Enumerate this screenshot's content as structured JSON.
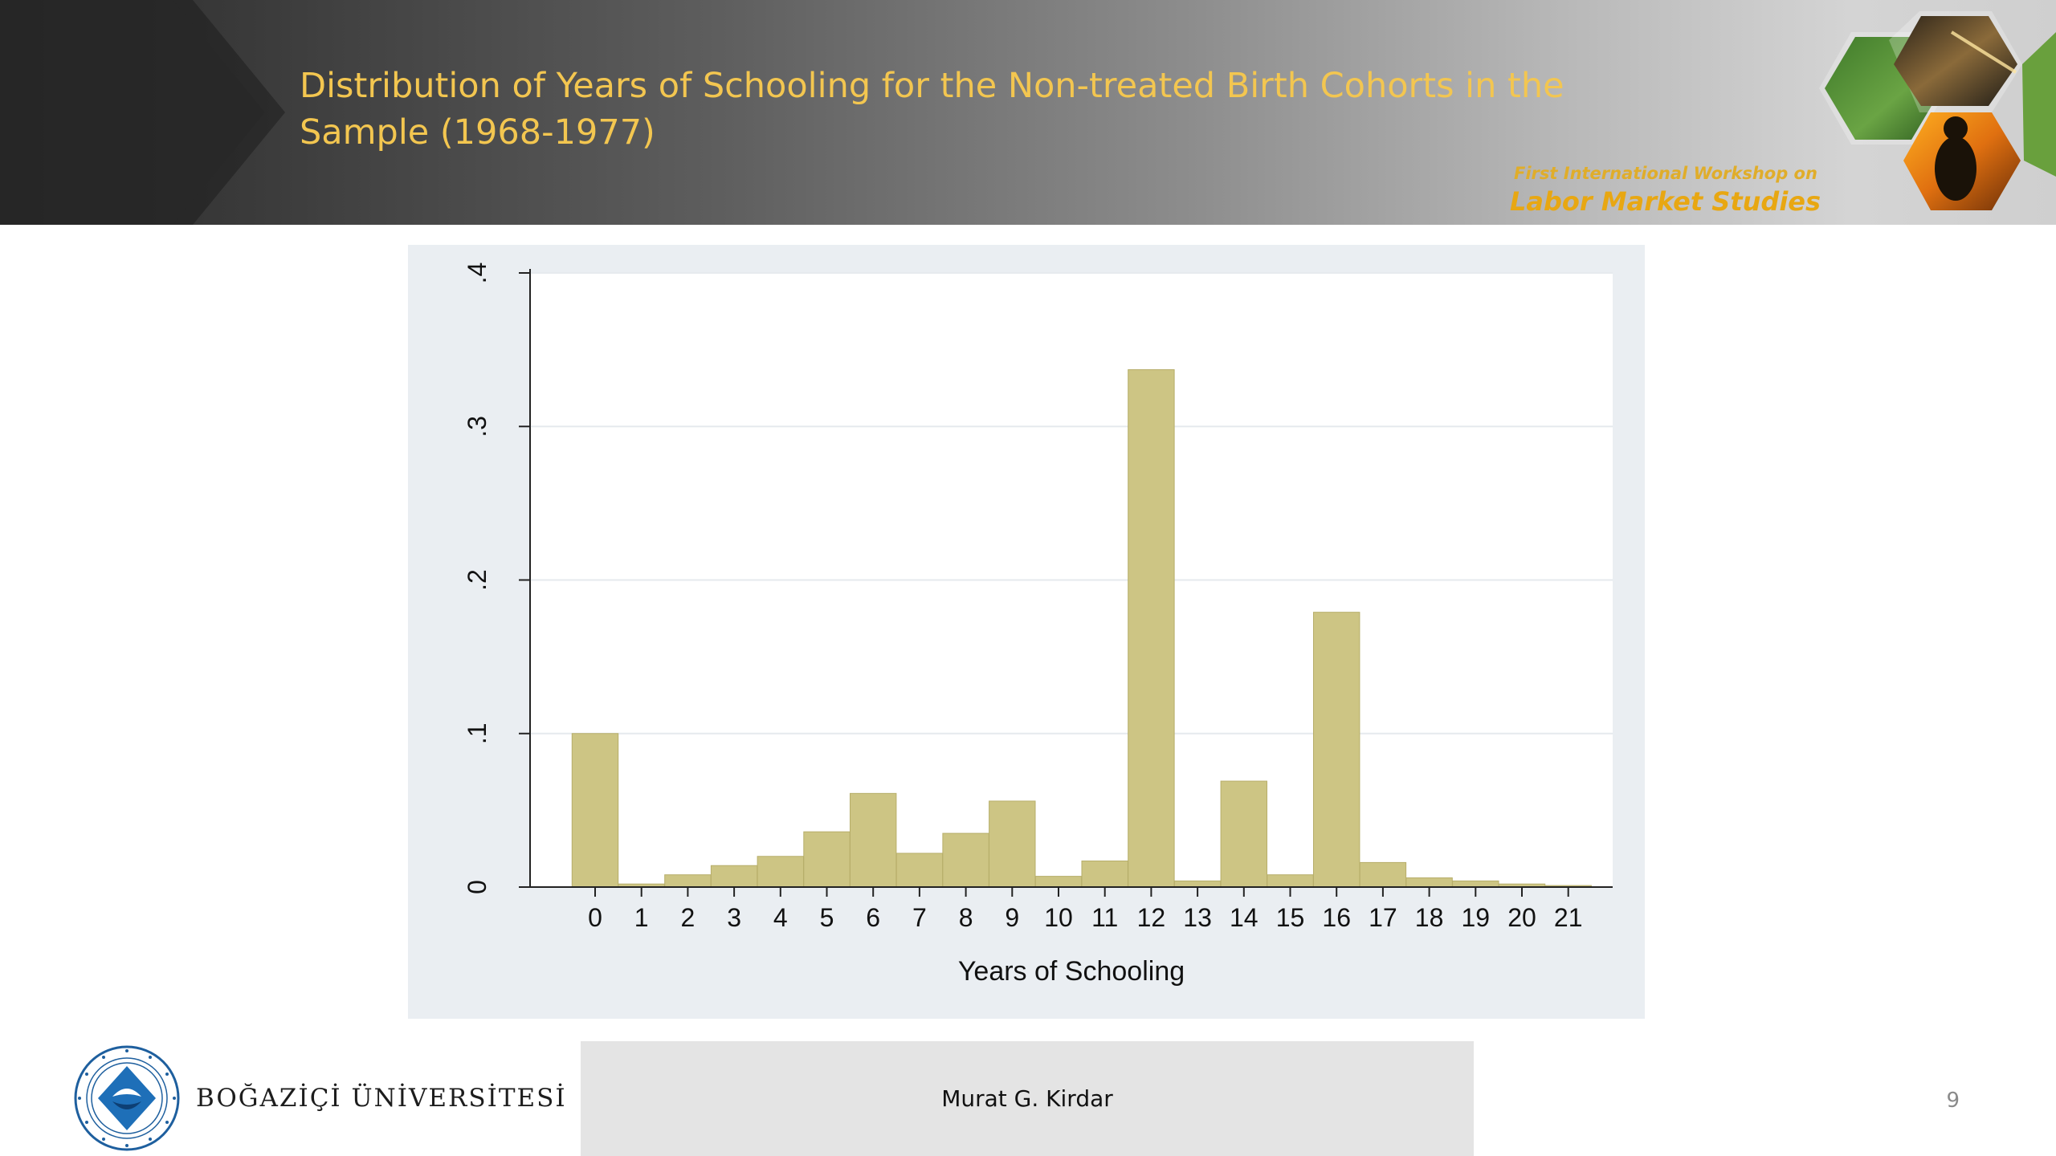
{
  "slide": {
    "title": "Distribution of Years of Schooling for the Non-treated Birth Cohorts in the Sample (1968-1977)",
    "workshop_line1": "First International Workshop on",
    "workshop_line2": "Labor Market Studies",
    "presenter": "Murat G. Kirdar",
    "university": "BOĞAZİÇİ ÜNİVERSİTESİ",
    "page_number": "9",
    "colors": {
      "title": "#f3c650",
      "workshop": "#e8a712",
      "bar_fill": "#cdc584",
      "bar_edge": "#b7ae6a",
      "chart_background": "#eaeef2",
      "plot_background": "#ffffff",
      "logo_blue": "#1e6fb8"
    }
  },
  "chart_data": {
    "type": "bar",
    "title": "",
    "xlabel": "Years of Schooling",
    "ylabel": "",
    "categories": [
      "0",
      "1",
      "2",
      "3",
      "4",
      "5",
      "6",
      "7",
      "8",
      "9",
      "10",
      "11",
      "12",
      "13",
      "14",
      "15",
      "16",
      "17",
      "18",
      "19",
      "20",
      "21"
    ],
    "values": [
      0.1,
      0.002,
      0.008,
      0.014,
      0.02,
      0.036,
      0.061,
      0.022,
      0.035,
      0.056,
      0.007,
      0.017,
      0.337,
      0.004,
      0.069,
      0.008,
      0.179,
      0.016,
      0.006,
      0.004,
      0.002,
      0.001
    ],
    "ylim": [
      0,
      0.4
    ],
    "yticks": [
      0,
      0.1,
      0.2,
      0.3,
      0.4
    ],
    "ytick_labels": [
      "0",
      ".1",
      ".2",
      ".3",
      ".4"
    ],
    "grid": true,
    "legend": "none"
  }
}
